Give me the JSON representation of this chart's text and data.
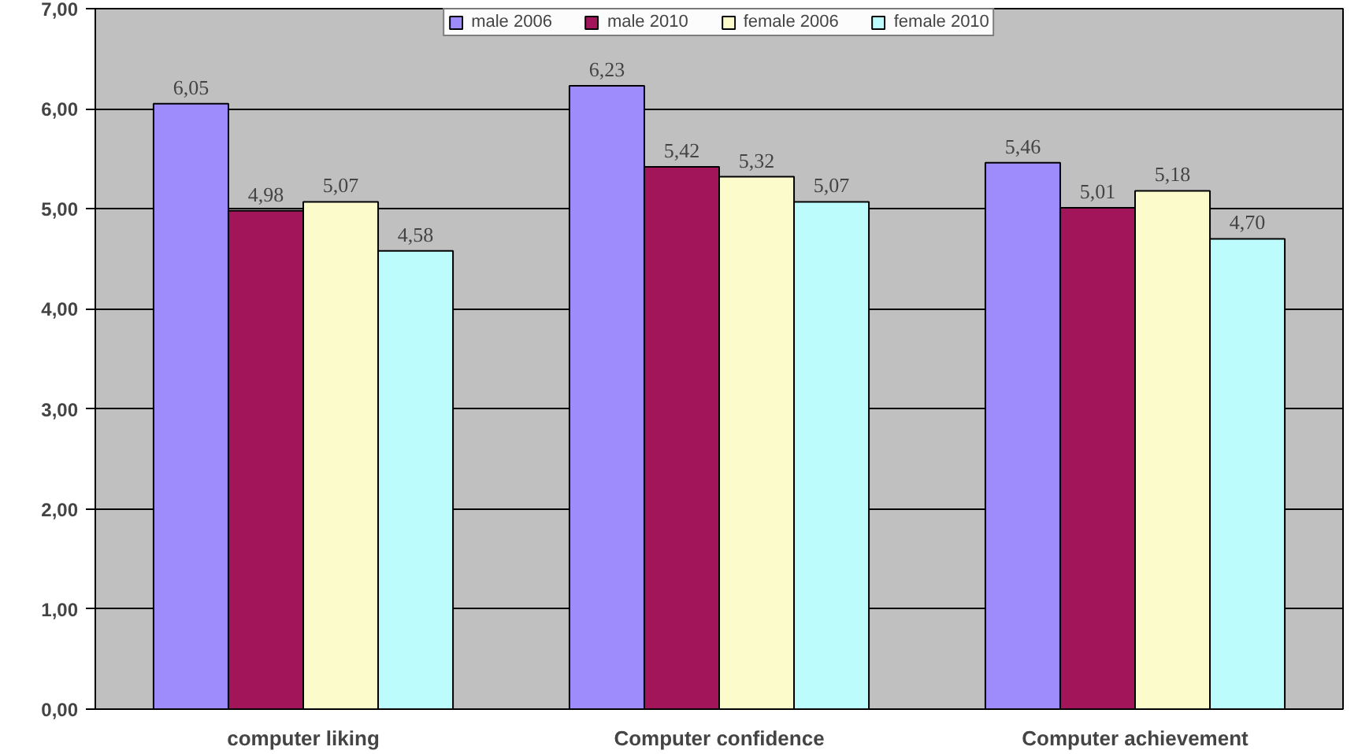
{
  "chart_data": {
    "type": "bar",
    "categories": [
      "computer liking",
      "Computer confidence",
      "Computer achievement"
    ],
    "series": [
      {
        "name": "male 2006",
        "color": "#9f8cfc",
        "values": [
          6.05,
          6.23,
          5.46
        ],
        "value_labels": [
          "6,05",
          "6,23",
          "5,46"
        ]
      },
      {
        "name": "male 2010",
        "color": "#a3155b",
        "values": [
          4.98,
          5.42,
          5.01
        ],
        "value_labels": [
          "4,98",
          "5,42",
          "5,01"
        ]
      },
      {
        "name": "female 2006",
        "color": "#fbfbcc",
        "values": [
          5.07,
          5.32,
          5.18
        ],
        "value_labels": [
          "5,07",
          "5,32",
          "5,18"
        ]
      },
      {
        "name": "female 2010",
        "color": "#bdfcfc",
        "values": [
          4.58,
          5.07,
          4.7
        ],
        "value_labels": [
          "4,58",
          "5,07",
          "4,70"
        ]
      }
    ],
    "ylim": [
      0,
      7
    ],
    "yticks": [
      {
        "value": 0,
        "label": "0,00"
      },
      {
        "value": 1,
        "label": "1,00"
      },
      {
        "value": 2,
        "label": "2,00"
      },
      {
        "value": 3,
        "label": "3,00"
      },
      {
        "value": 4,
        "label": "4,00"
      },
      {
        "value": 5,
        "label": "5,00"
      },
      {
        "value": 6,
        "label": "6,00"
      },
      {
        "value": 7,
        "label": "7,00"
      }
    ],
    "grid": "y",
    "legend": "top"
  }
}
